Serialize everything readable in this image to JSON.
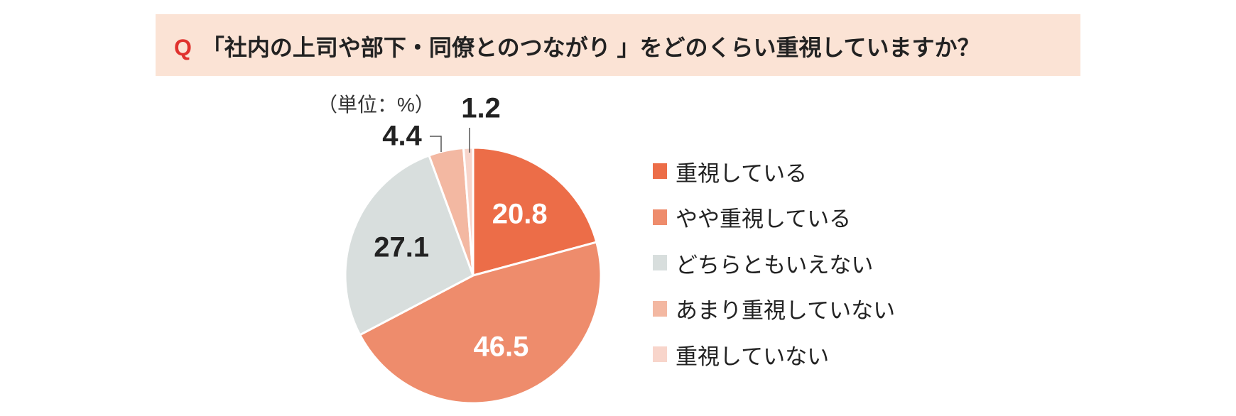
{
  "header": {
    "q_mark": "Q",
    "question": "「社内の上司や部下・同僚とのつながり 」をどのくらい重視していますか？"
  },
  "chart_data": {
    "type": "pie",
    "title": "「社内の上司や部下・同僚とのつながり 」をどのくらい重視していますか？",
    "unit_label": "（単位：%）",
    "start": "top",
    "direction": "clockwise",
    "legend_position": "right",
    "categories": [
      "重視している",
      "やや重視している",
      "どちらともいえない",
      "あまり重視していない",
      "重視していない"
    ],
    "values": [
      20.8,
      46.5,
      27.1,
      4.4,
      1.2
    ],
    "value_labels": [
      "20.8",
      "46.5",
      "27.1",
      "4.4",
      "1.2"
    ],
    "colors": [
      "#EC6D48",
      "#EE8C6C",
      "#D8DEDD",
      "#F3B8A2",
      "#F8D5CB"
    ],
    "label_colors": [
      "#ffffff",
      "#ffffff",
      "#222222",
      "#222222",
      "#222222"
    ]
  }
}
